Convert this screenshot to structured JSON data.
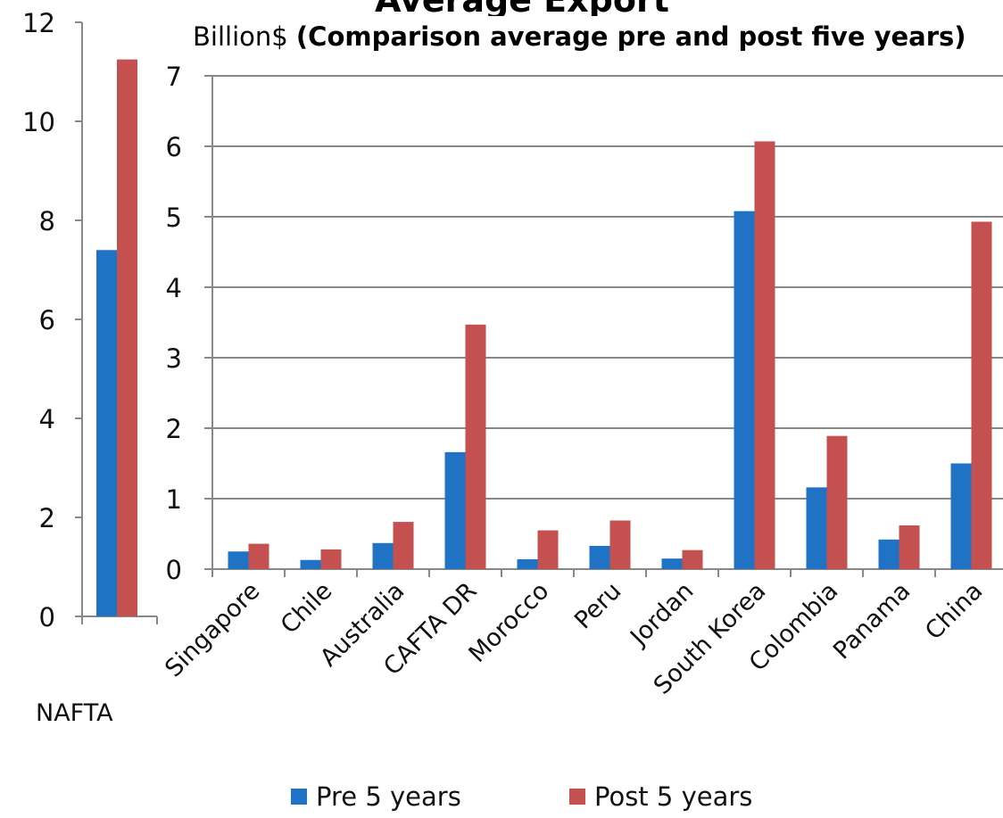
{
  "title": "Average Export",
  "subtitle": {
    "unit": "Billion$",
    "text": "(Comparison average pre and post five years)"
  },
  "colors": {
    "pre": "#1f72c4",
    "post": "#c4504f",
    "grid": "#888888",
    "axis": "#888888",
    "text": "#111111"
  },
  "chart_data": [
    {
      "type": "bar",
      "categories": [
        "NAFTA"
      ],
      "series": [
        {
          "name": "Pre 5 years",
          "values": [
            7.4
          ]
        },
        {
          "name": "Post 5 years",
          "values": [
            11.25
          ]
        }
      ],
      "ylim": [
        0,
        12
      ],
      "yticks": [
        0,
        2,
        4,
        6,
        8,
        10,
        12
      ],
      "grid": false
    },
    {
      "type": "bar",
      "categories": [
        "Singapore",
        "Chile",
        "Australia",
        "CAFTA DR",
        "Morocco",
        "Peru",
        "Jordan",
        "South Korea",
        "Colombia",
        "Panama",
        "China"
      ],
      "series": [
        {
          "name": "Pre 5 years",
          "values": [
            0.25,
            0.13,
            0.37,
            1.66,
            0.14,
            0.33,
            0.15,
            5.08,
            1.16,
            0.42,
            1.5
          ]
        },
        {
          "name": "Post 5 years",
          "values": [
            0.36,
            0.28,
            0.67,
            3.47,
            0.55,
            0.69,
            0.27,
            6.07,
            1.89,
            0.62,
            4.93
          ]
        }
      ],
      "ylim": [
        0,
        7
      ],
      "yticks": [
        0,
        1,
        2,
        3,
        4,
        5,
        6,
        7
      ],
      "grid": true,
      "legend": "bottom"
    }
  ],
  "legend": [
    {
      "label": "Pre 5 years",
      "color": "#1f72c4"
    },
    {
      "label": "Post 5 years",
      "color": "#c4504f"
    }
  ]
}
